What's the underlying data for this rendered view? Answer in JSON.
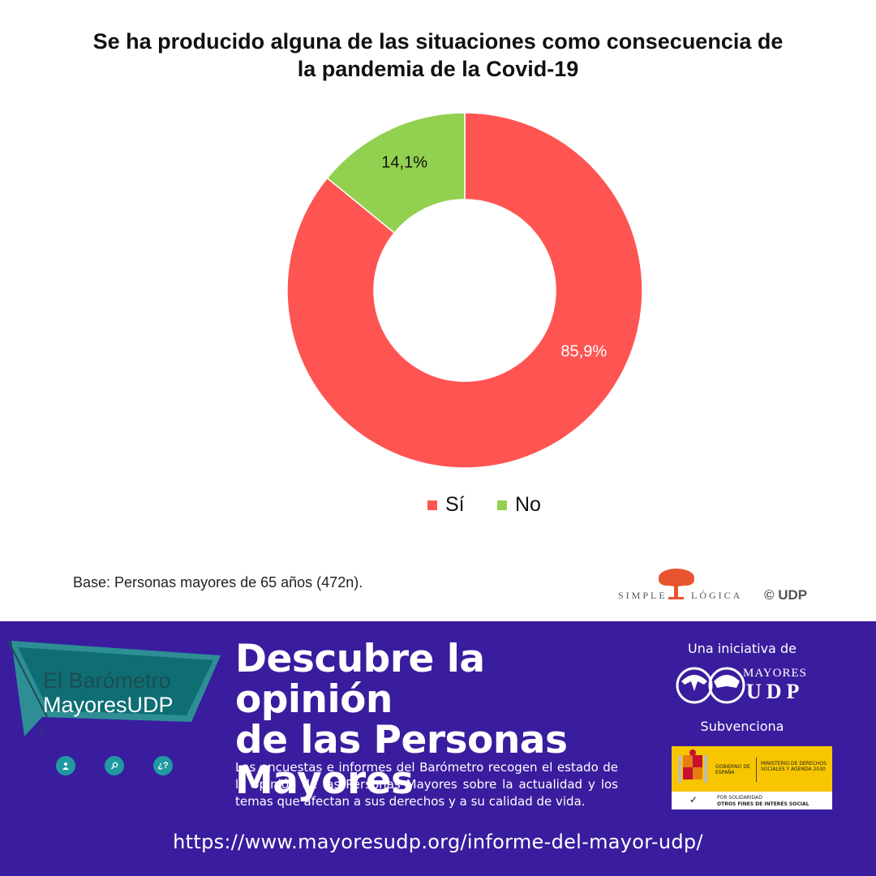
{
  "chart_data": {
    "type": "pie",
    "title": "Se ha producido alguna de las situaciones como consecuencia de la pandemia de la Covid-19",
    "title_lines": [
      "Se ha producido alguna de las situaciones como consecuencia de",
      "la pandemia de la Covid-19"
    ],
    "donut": true,
    "slices": [
      {
        "label": "Sí",
        "value": 85.9,
        "display": "85,9%",
        "color": "#fe5552"
      },
      {
        "label": "No",
        "value": 14.1,
        "display": "14,1%",
        "color": "#92d050"
      }
    ],
    "legend": [
      "Sí",
      "No"
    ],
    "legend_position": "bottom"
  },
  "footnote": "Base: Personas mayores de 65 años (472n).",
  "credits": {
    "simple": "SIMPLE",
    "logica": "LÓGICA",
    "udp": "© UDP"
  },
  "banner": {
    "badge_line1": "El Barómetro",
    "badge_line2": "MayoresUDP",
    "icons": [
      "person-icon",
      "search-icon",
      "question-icon"
    ],
    "question_glyph": "¿?",
    "headline_lines": [
      "Descubre la opinión",
      "de las Personas",
      "Mayores"
    ],
    "body": "Las encuestas e informes del Barómetro recogen el estado de la opinión de las Personas Mayores sobre la actualidad y los temas que afectan a sus derechos y a su calidad de vida.",
    "initiative_label": "Una iniciativa de",
    "mayores_logo_top": "MAYORES",
    "mayores_logo_bottom": "UDP",
    "subvenciona_label": "Subvenciona",
    "gov_left": "GOBIERNO DE ESPAÑA",
    "gov_right": "MINISTERIO DE DERECHOS SOCIALES Y AGENDA 2030",
    "gov_bottom_1": "POR SOLIDARIDAD",
    "gov_bottom_2": "OTROS FINES DE INTERÉS SOCIAL",
    "url": "https://www.mayoresudp.org/informe-del-mayor-udp/",
    "bg_color": "#3a1c9e",
    "accent_color": "#1e9aa0"
  }
}
